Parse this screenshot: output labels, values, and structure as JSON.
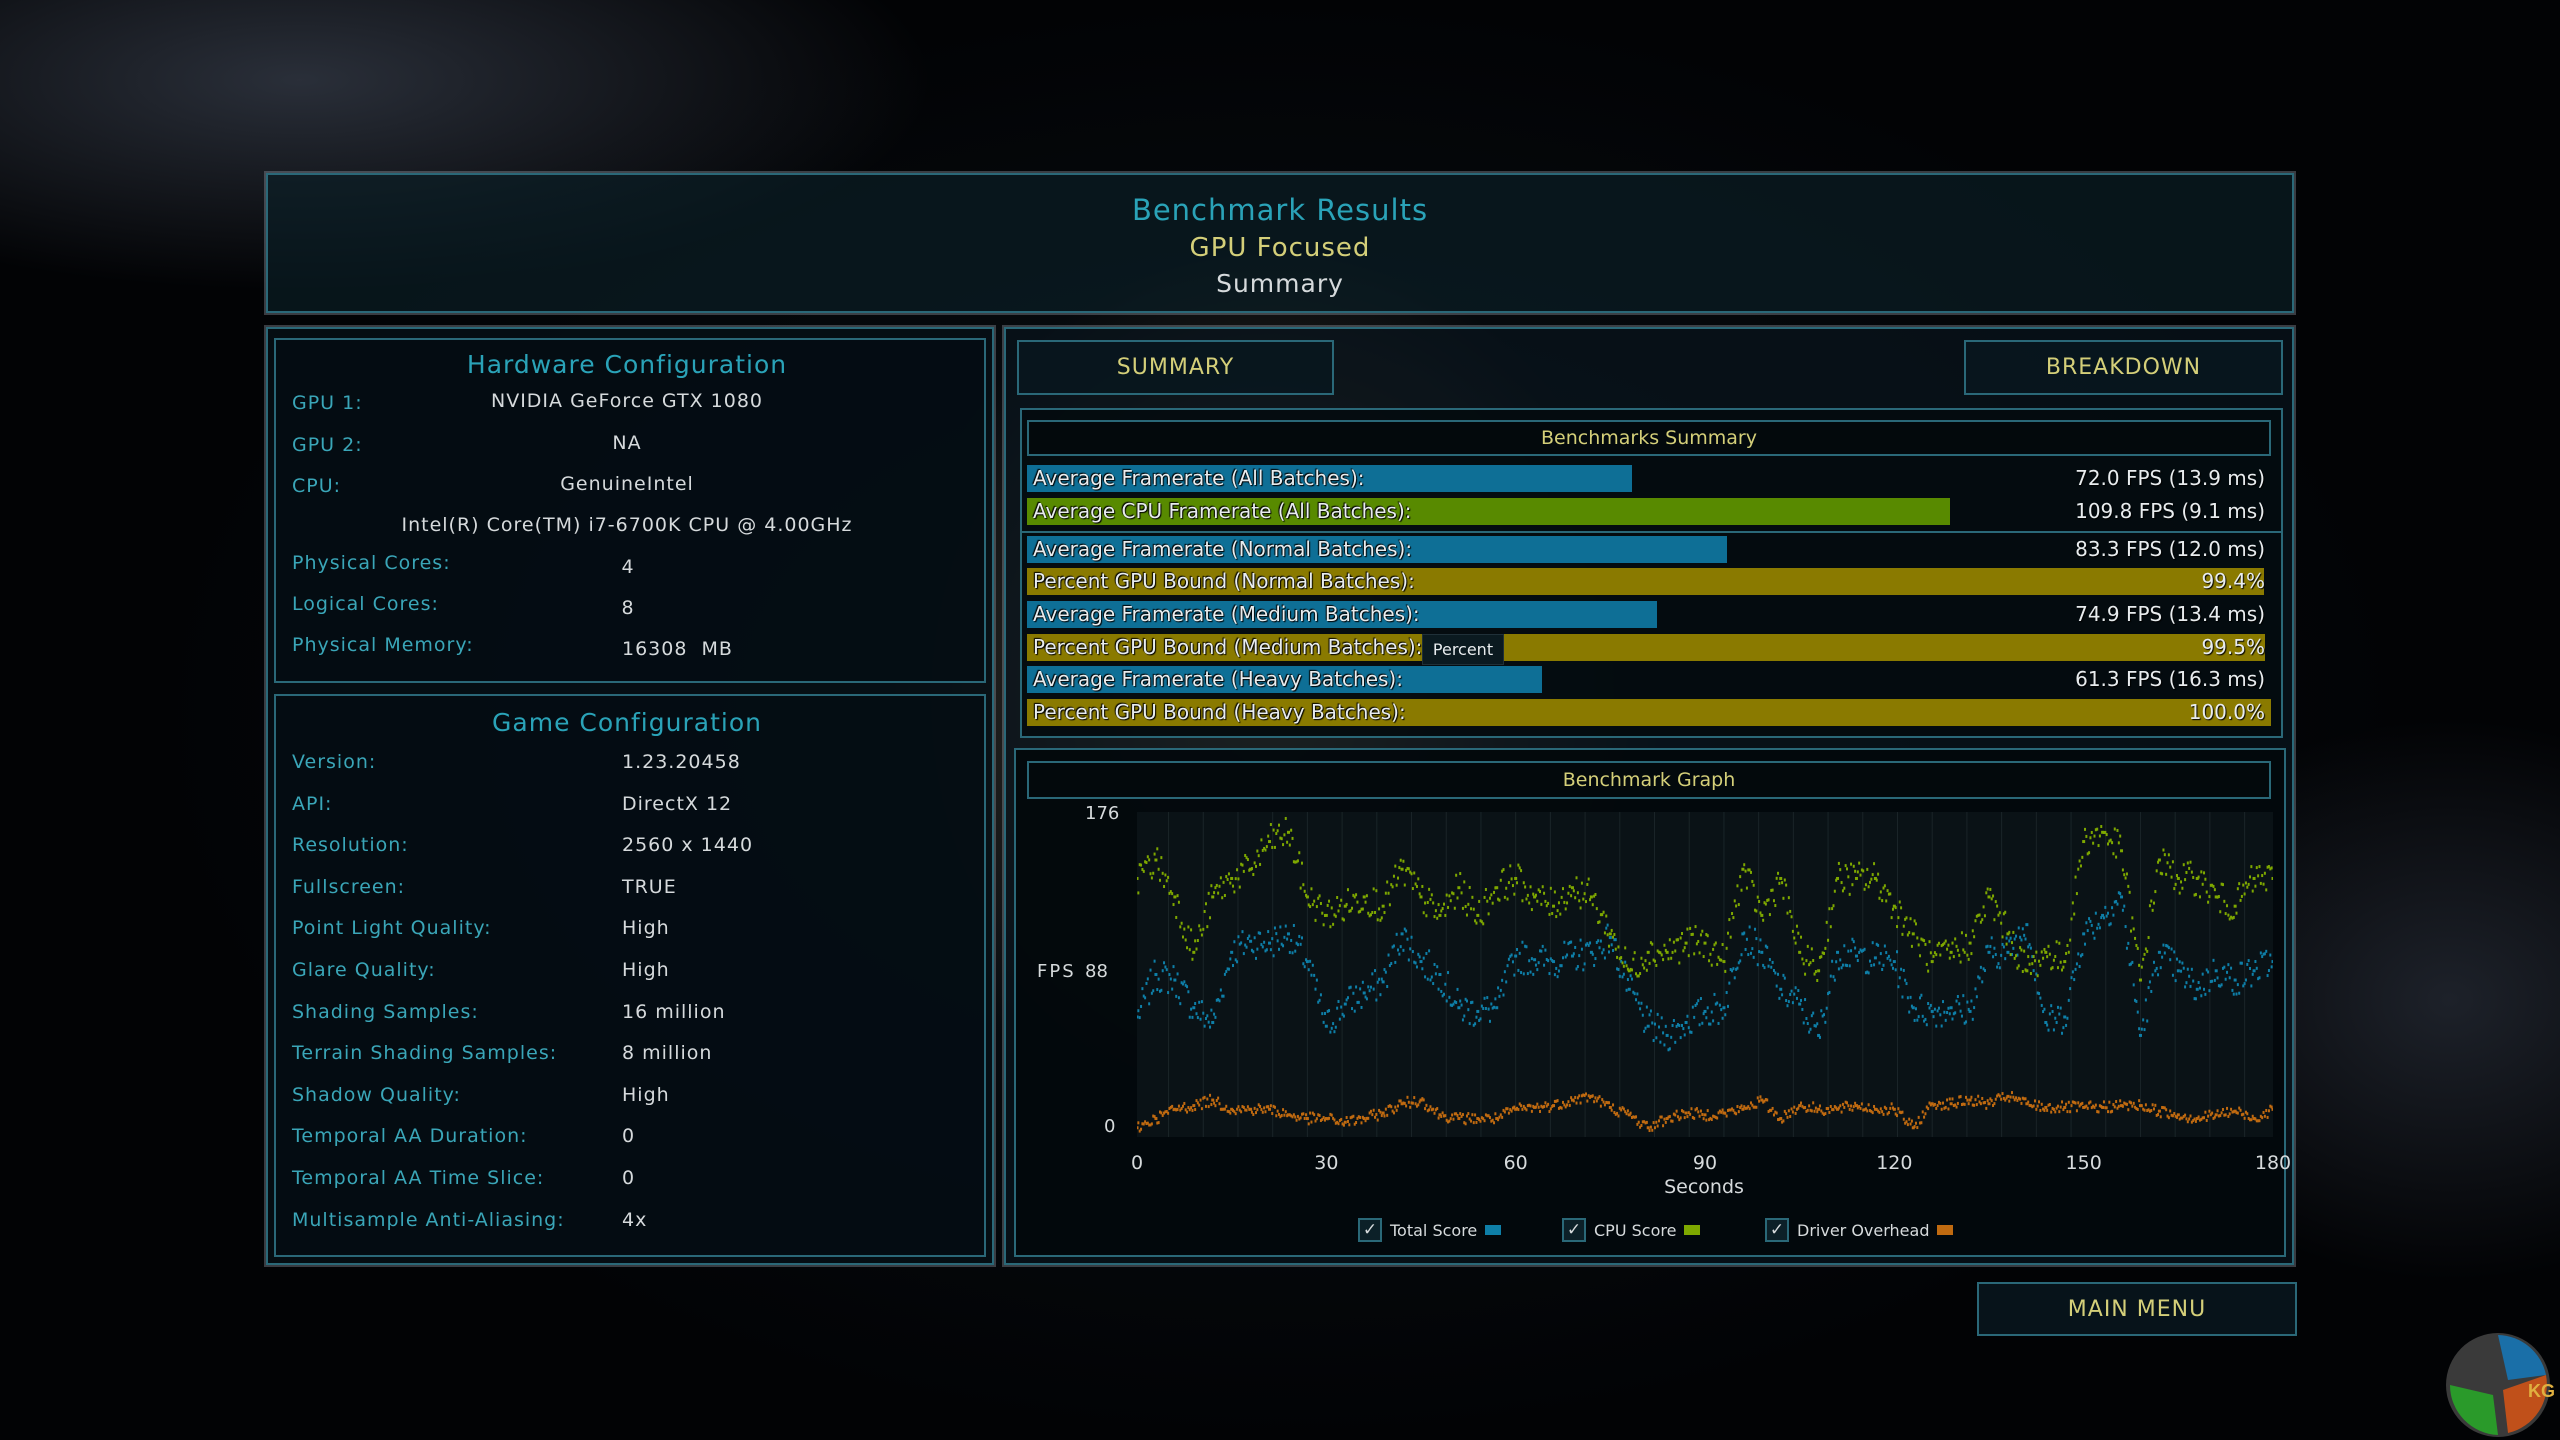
{
  "header": {
    "title": "Benchmark Results",
    "mode": "GPU Focused",
    "view": "Summary"
  },
  "hardware": {
    "title": "Hardware Configuration",
    "gpu1_label": "GPU 1:",
    "gpu1": "NVIDIA GeForce GTX 1080",
    "gpu2_label": "GPU 2:",
    "gpu2": "NA",
    "cpu_label": "CPU:",
    "cpu_vendor": "GenuineIntel",
    "cpu_name": "Intel(R) Core(TM) i7-6700K CPU @ 4.00GHz",
    "phys_label": "Physical Cores:",
    "phys": "4",
    "logical_label": "Logical Cores:",
    "logical": "8",
    "mem_label": "Physical Memory:",
    "mem": "16308  MB"
  },
  "game": {
    "title": "Game Configuration",
    "rows": [
      {
        "label": "Version:",
        "value": "1.23.20458"
      },
      {
        "label": "API:",
        "value": "DirectX 12"
      },
      {
        "label": "Resolution:",
        "value": "2560 x 1440"
      },
      {
        "label": "Fullscreen:",
        "value": "TRUE"
      },
      {
        "label": "Point Light Quality:",
        "value": "High"
      },
      {
        "label": "Glare Quality:",
        "value": "High"
      },
      {
        "label": "Shading Samples:",
        "value": "16 million"
      },
      {
        "label": "Terrain Shading Samples:",
        "value": "8 million"
      },
      {
        "label": "Shadow Quality:",
        "value": "High"
      },
      {
        "label": "Temporal AA Duration:",
        "value": "0"
      },
      {
        "label": "Temporal AA Time Slice:",
        "value": "0"
      },
      {
        "label": "Multisample Anti-Aliasing:",
        "value": "4x"
      }
    ]
  },
  "tabs": {
    "summary": "SUMMARY",
    "breakdown": "BREAKDOWN",
    "active": "summary"
  },
  "summary": {
    "title": "Benchmarks Summary",
    "colors": {
      "fps": "#0e6f96",
      "cpu": "#588a00",
      "gpu": "#8a7a00"
    },
    "rows": [
      {
        "label": "Average Framerate (All Batches):",
        "value": "72.0 FPS (13.9 ms)",
        "kind": "fps",
        "level": 72.0
      },
      {
        "label": "Average CPU Framerate (All Batches):",
        "value": "109.8 FPS (9.1 ms)",
        "kind": "cpu",
        "level": 109.8
      },
      {
        "label": "Average Framerate (Normal Batches):",
        "value": "83.3 FPS (12.0 ms)",
        "kind": "fps",
        "level": 83.3
      },
      {
        "label": "Percent GPU Bound (Normal Batches):",
        "value": "99.4%",
        "kind": "gpu",
        "level": 99.4
      },
      {
        "label": "Average Framerate (Medium Batches):",
        "value": "74.9 FPS (13.4 ms)",
        "kind": "fps",
        "level": 74.9
      },
      {
        "label": "Percent GPU Bound (Medium Batches):",
        "value": "99.5%",
        "kind": "gpu",
        "level": 99.5
      },
      {
        "label": "Average Framerate (Heavy Batches):",
        "value": "61.3 FPS (16.3 ms)",
        "kind": "fps",
        "level": 61.3
      },
      {
        "label": "Percent GPU Bound (Heavy Batches):",
        "value": "100.0%",
        "kind": "gpu",
        "level": 100.0
      }
    ],
    "tooltip": "Percent"
  },
  "chart_data": {
    "type": "scatter",
    "title": "Benchmark Graph",
    "xlabel": "Seconds",
    "ylabel": "FPS",
    "xlim": [
      0,
      180
    ],
    "ylim": [
      0,
      176
    ],
    "xticks": [
      "0",
      "30",
      "60",
      "90",
      "120",
      "150",
      "180"
    ],
    "yticks": [
      "0",
      "88",
      "176"
    ],
    "legend_position": "bottom",
    "x": [
      0,
      3,
      6,
      9,
      12,
      15,
      18,
      21,
      24,
      27,
      30,
      33,
      36,
      39,
      42,
      45,
      48,
      51,
      54,
      57,
      60,
      63,
      66,
      69,
      72,
      75,
      78,
      81,
      84,
      87,
      90,
      93,
      96,
      99,
      102,
      105,
      108,
      111,
      114,
      117,
      120,
      123,
      126,
      129,
      132,
      135,
      138,
      141,
      144,
      147,
      150,
      153,
      156,
      159,
      162,
      165,
      168,
      171,
      174,
      177,
      180
    ],
    "series": [
      {
        "name": "Total Score",
        "color": "#0e7fa8",
        "checked": true,
        "values": [
          65,
          88,
          85,
          70,
          62,
          100,
          106,
          105,
          110,
          95,
          60,
          72,
          78,
          84,
          110,
          95,
          88,
          70,
          68,
          70,
          98,
          96,
          95,
          98,
          100,
          108,
          80,
          60,
          55,
          62,
          68,
          70,
          110,
          100,
          80,
          72,
          55,
          100,
          98,
          97,
          95,
          70,
          68,
          70,
          68,
          100,
          100,
          115,
          62,
          65,
          110,
          120,
          130,
          55,
          100,
          90,
          80,
          90,
          85,
          90,
          95
        ]
      },
      {
        "name": "CPU Score",
        "color": "#7ea800",
        "checked": true,
        "values": [
          140,
          150,
          130,
          100,
          130,
          140,
          145,
          160,
          165,
          130,
          120,
          125,
          130,
          125,
          145,
          130,
          120,
          135,
          120,
          135,
          140,
          130,
          125,
          135,
          130,
          110,
          90,
          100,
          100,
          105,
          105,
          95,
          145,
          120,
          140,
          100,
          90,
          140,
          140,
          140,
          125,
          110,
          95,
          100,
          105,
          130,
          110,
          90,
          100,
          95,
          160,
          165,
          155,
          85,
          150,
          140,
          140,
          130,
          125,
          140,
          140
        ]
      },
      {
        "name": "Driver Overhead",
        "color": "#c06a10",
        "checked": true,
        "values": [
          5,
          10,
          15,
          17,
          20,
          15,
          15,
          15,
          12,
          10,
          10,
          8,
          10,
          13,
          18,
          20,
          12,
          10,
          10,
          10,
          15,
          16,
          17,
          20,
          22,
          16,
          12,
          5,
          10,
          13,
          12,
          13,
          15,
          20,
          10,
          17,
          15,
          15,
          17,
          15,
          15,
          5,
          18,
          18,
          20,
          18,
          22,
          18,
          16,
          16,
          16,
          16,
          17,
          17,
          14,
          12,
          10,
          12,
          14,
          10,
          15
        ]
      }
    ]
  },
  "main_menu": "MAIN MENU",
  "logo_text": "KG"
}
